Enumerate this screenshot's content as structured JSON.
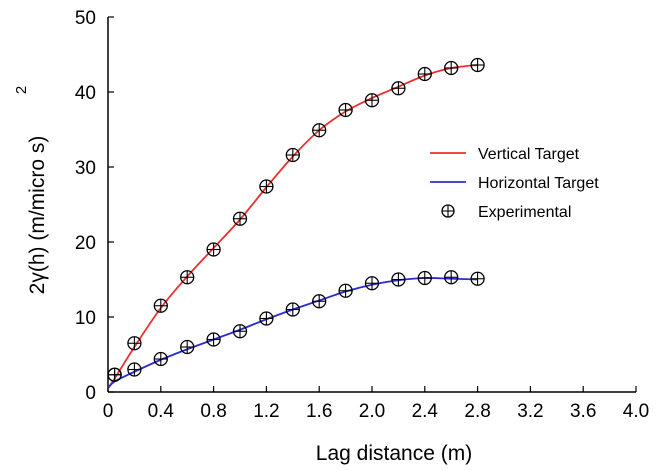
{
  "chart_data": {
    "type": "line",
    "title": "",
    "xlabel": "Lag distance (m)",
    "ylabel": "2γ(h)  (m/micro s)",
    "ylabel_superscript": "2",
    "xlim": [
      0,
      4.0
    ],
    "ylim": [
      0,
      50
    ],
    "xticks": [
      "0",
      "0.4",
      "0.8",
      "1.2",
      "1.6",
      "2.0",
      "2.4",
      "2.8",
      "3.2",
      "3.6",
      "4.0"
    ],
    "yticks": [
      "0",
      "10",
      "20",
      "30",
      "40",
      "50"
    ],
    "grid": false,
    "legend_position": "right",
    "series": [
      {
        "name": "Vertical Target",
        "kind": "line",
        "color": "#e8312f",
        "x": [
          0.0,
          0.05,
          0.2,
          0.4,
          0.6,
          0.8,
          1.0,
          1.2,
          1.4,
          1.6,
          1.8,
          2.0,
          2.2,
          2.4,
          2.6,
          2.8
        ],
        "y": [
          0.5,
          1.8,
          6.0,
          11.2,
          15.4,
          19.2,
          23.0,
          27.3,
          31.4,
          34.9,
          37.4,
          39.2,
          40.7,
          42.2,
          43.2,
          43.6
        ]
      },
      {
        "name": "Horizontal Target",
        "kind": "line",
        "color": "#2b2bd6",
        "x": [
          0.0,
          0.05,
          0.2,
          0.4,
          0.6,
          0.8,
          1.0,
          1.2,
          1.4,
          1.6,
          1.8,
          2.0,
          2.2,
          2.4,
          2.6,
          2.8
        ],
        "y": [
          0.5,
          1.4,
          2.7,
          4.3,
          5.7,
          7.0,
          8.3,
          9.7,
          11.0,
          12.2,
          13.4,
          14.3,
          14.9,
          15.2,
          15.1,
          15.0
        ]
      },
      {
        "name": "Experimental",
        "kind": "markers",
        "marker": "circle-plus",
        "color": "#000000",
        "x": [
          0.05,
          0.2,
          0.4,
          0.6,
          0.8,
          1.0,
          1.2,
          1.4,
          1.6,
          1.8,
          2.0,
          2.2,
          2.4,
          2.6,
          2.8,
          0.05,
          0.2,
          0.4,
          0.6,
          0.8,
          1.0,
          1.2,
          1.4,
          1.6,
          1.8,
          2.0,
          2.2,
          2.4,
          2.6,
          2.8
        ],
        "y": [
          2.3,
          6.5,
          11.5,
          15.3,
          19.0,
          23.1,
          27.4,
          31.6,
          34.9,
          37.6,
          38.9,
          40.5,
          42.4,
          43.2,
          43.6,
          2.3,
          3.0,
          4.4,
          6.0,
          7.0,
          8.1,
          9.8,
          11.0,
          12.1,
          13.5,
          14.5,
          15.0,
          15.2,
          15.3,
          15.1
        ]
      }
    ]
  }
}
